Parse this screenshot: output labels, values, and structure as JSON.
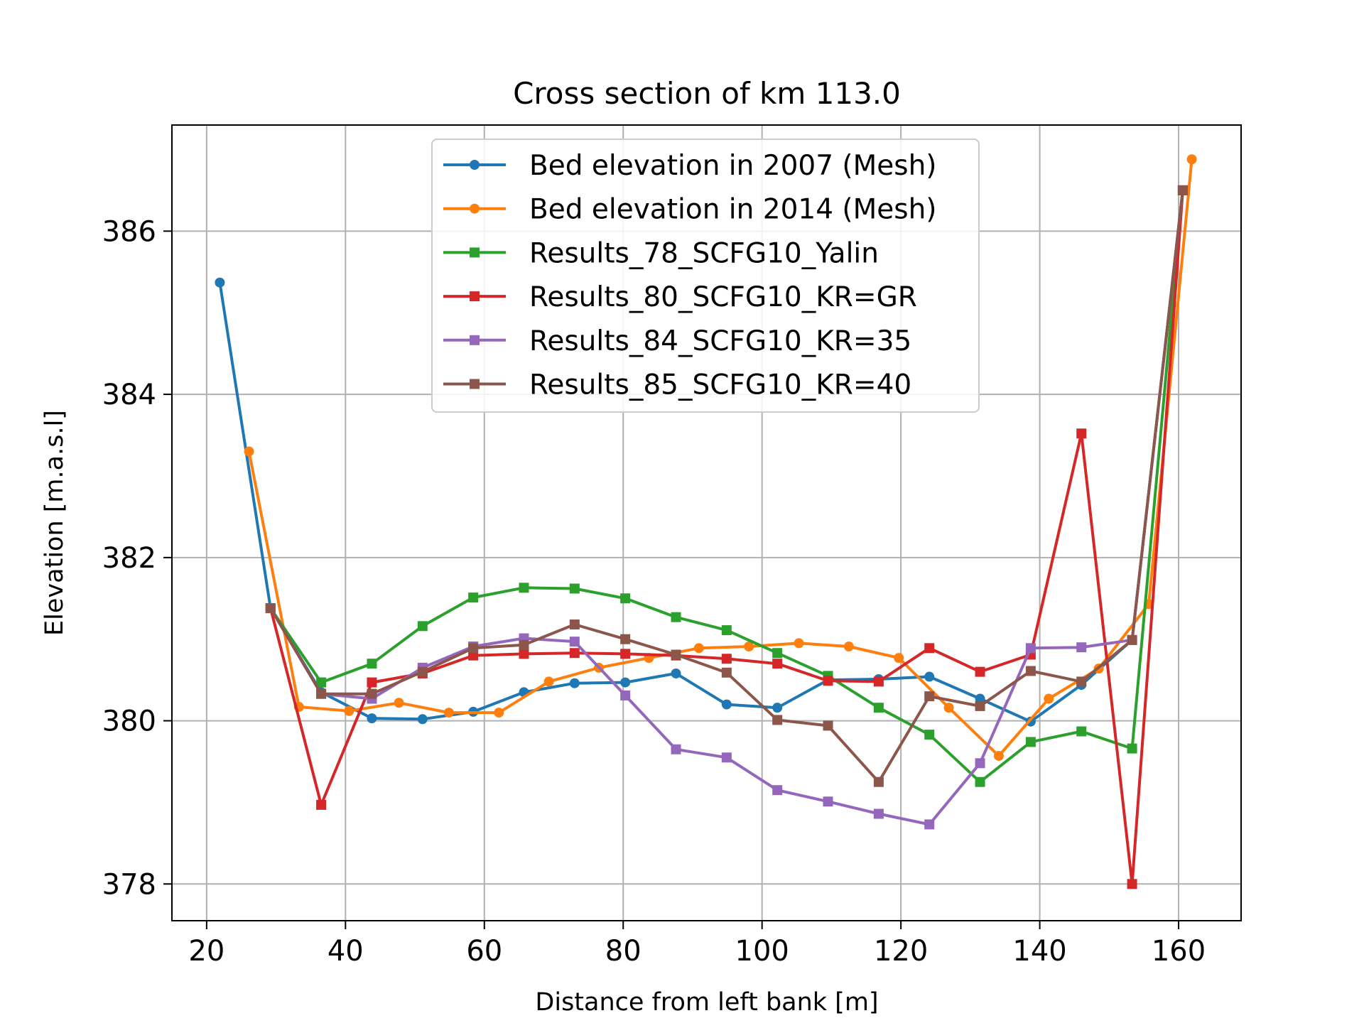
{
  "chart_data": {
    "type": "line",
    "title": "Cross section of km 113.0",
    "xlabel": "Distance from left bank [m]",
    "ylabel": "Elevation [m.a.s.l]",
    "xlim": [
      15,
      169
    ],
    "ylim": [
      377.55,
      387.3
    ],
    "xticks": [
      20,
      40,
      60,
      80,
      100,
      120,
      140,
      160
    ],
    "yticks": [
      378,
      380,
      382,
      384,
      386
    ],
    "grid": true,
    "legend_position": "upper center",
    "series": [
      {
        "name": "Bed elevation in 2007 (Mesh)",
        "color": "#1f77b4",
        "marker": "circle",
        "x": [
          21.9,
          29.2,
          36.5,
          43.8,
          51.1,
          58.4,
          65.7,
          73.0,
          80.3,
          87.6,
          94.9,
          102.2,
          109.5,
          116.8,
          124.1,
          131.4,
          138.7,
          146.0,
          153.3,
          160.6
        ],
        "y": [
          385.37,
          381.38,
          380.35,
          380.03,
          380.02,
          380.11,
          380.35,
          380.46,
          380.47,
          380.58,
          380.2,
          380.16,
          380.5,
          380.51,
          380.54,
          380.27,
          379.99,
          380.44,
          380.99,
          386.5
        ]
      },
      {
        "name": "Bed elevation in 2014 (Mesh)",
        "color": "#ff7f0e",
        "marker": "circle",
        "x": [
          26.1,
          33.3,
          40.5,
          47.7,
          54.9,
          62.1,
          69.3,
          76.5,
          83.7,
          90.9,
          98.1,
          105.3,
          112.5,
          119.7,
          126.9,
          134.1,
          141.3,
          148.5,
          155.7,
          161.9
        ],
        "y": [
          383.3,
          380.17,
          380.12,
          380.22,
          380.1,
          380.1,
          380.48,
          380.65,
          380.77,
          380.89,
          380.91,
          380.95,
          380.91,
          380.77,
          380.16,
          379.57,
          380.27,
          380.64,
          381.43,
          386.88
        ]
      },
      {
        "name": "Results_78_SCFG10_Yalin",
        "color": "#2ca02c",
        "marker": "square",
        "x": [
          29.2,
          36.5,
          43.8,
          51.1,
          58.4,
          65.7,
          73.0,
          80.3,
          87.6,
          94.9,
          102.2,
          109.5,
          116.8,
          124.1,
          131.4,
          138.7,
          146.0,
          153.3,
          160.6
        ],
        "y": [
          381.38,
          380.47,
          380.7,
          381.16,
          381.51,
          381.63,
          381.62,
          381.5,
          381.27,
          381.11,
          380.83,
          380.55,
          380.16,
          379.83,
          379.25,
          379.74,
          379.87,
          379.66,
          386.5
        ]
      },
      {
        "name": "Results_80_SCFG10_KR=GR",
        "color": "#d62728",
        "marker": "square",
        "x": [
          29.2,
          36.5,
          43.8,
          51.1,
          58.4,
          65.7,
          73.0,
          80.3,
          87.6,
          94.9,
          102.2,
          109.5,
          116.8,
          124.1,
          131.4,
          138.7,
          146.0,
          153.3,
          160.6
        ],
        "y": [
          381.38,
          378.97,
          380.47,
          380.58,
          380.8,
          380.82,
          380.83,
          380.82,
          380.8,
          380.76,
          380.7,
          380.49,
          380.48,
          380.89,
          380.6,
          380.81,
          383.52,
          378.0,
          386.5
        ]
      },
      {
        "name": "Results_84_SCFG10_KR=35",
        "color": "#9467bd",
        "marker": "square",
        "x": [
          29.2,
          36.5,
          43.8,
          51.1,
          58.4,
          65.7,
          73.0,
          80.3,
          87.6,
          94.9,
          102.2,
          109.5,
          116.8,
          124.1,
          131.4,
          138.7,
          146.0,
          153.3,
          160.6
        ],
        "y": [
          381.38,
          380.33,
          380.27,
          380.65,
          380.91,
          381.01,
          380.97,
          380.31,
          379.65,
          379.55,
          379.15,
          379.01,
          378.86,
          378.73,
          379.48,
          380.89,
          380.9,
          380.99,
          386.5
        ]
      },
      {
        "name": "Results_85_SCFG10_KR=40",
        "color": "#8c564b",
        "marker": "square",
        "x": [
          29.2,
          36.5,
          43.8,
          51.1,
          58.4,
          65.7,
          73.0,
          80.3,
          87.6,
          94.9,
          102.2,
          109.5,
          116.8,
          124.1,
          131.4,
          138.7,
          146.0,
          153.3,
          160.6
        ],
        "y": [
          381.38,
          380.33,
          380.33,
          380.6,
          380.89,
          380.93,
          381.18,
          381.0,
          380.81,
          380.59,
          380.01,
          379.94,
          379.25,
          380.3,
          380.18,
          380.61,
          380.48,
          380.99,
          386.5
        ]
      }
    ]
  }
}
